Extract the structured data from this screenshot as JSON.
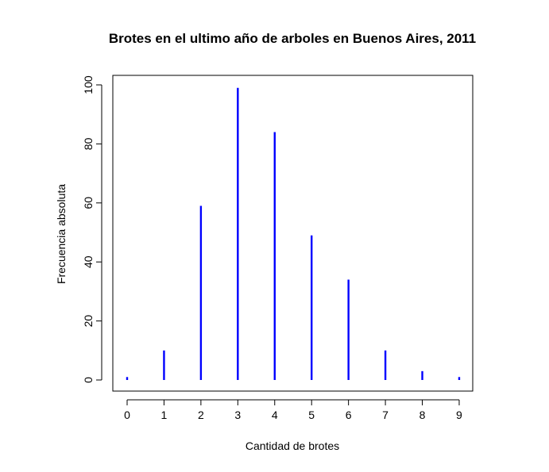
{
  "chart_data": {
    "type": "bar",
    "title": "Brotes en el ultimo año de arboles en Buenos Aires, 2011",
    "xlabel": "Cantidad de brotes",
    "ylabel": "Frecuencia absoluta",
    "categories": [
      "0",
      "1",
      "2",
      "3",
      "4",
      "5",
      "6",
      "7",
      "8",
      "9"
    ],
    "x": [
      0,
      1,
      2,
      3,
      4,
      5,
      6,
      7,
      8,
      9
    ],
    "values": [
      1,
      10,
      59,
      99,
      84,
      49,
      34,
      10,
      3,
      1
    ],
    "xticks": [
      "0",
      "1",
      "2",
      "3",
      "4",
      "5",
      "6",
      "7",
      "8",
      "9"
    ],
    "yticks": [
      "0",
      "20",
      "40",
      "60",
      "80",
      "100"
    ],
    "ylim": [
      0,
      100
    ],
    "color": "#0000ff",
    "grid": false,
    "legend": "none"
  }
}
